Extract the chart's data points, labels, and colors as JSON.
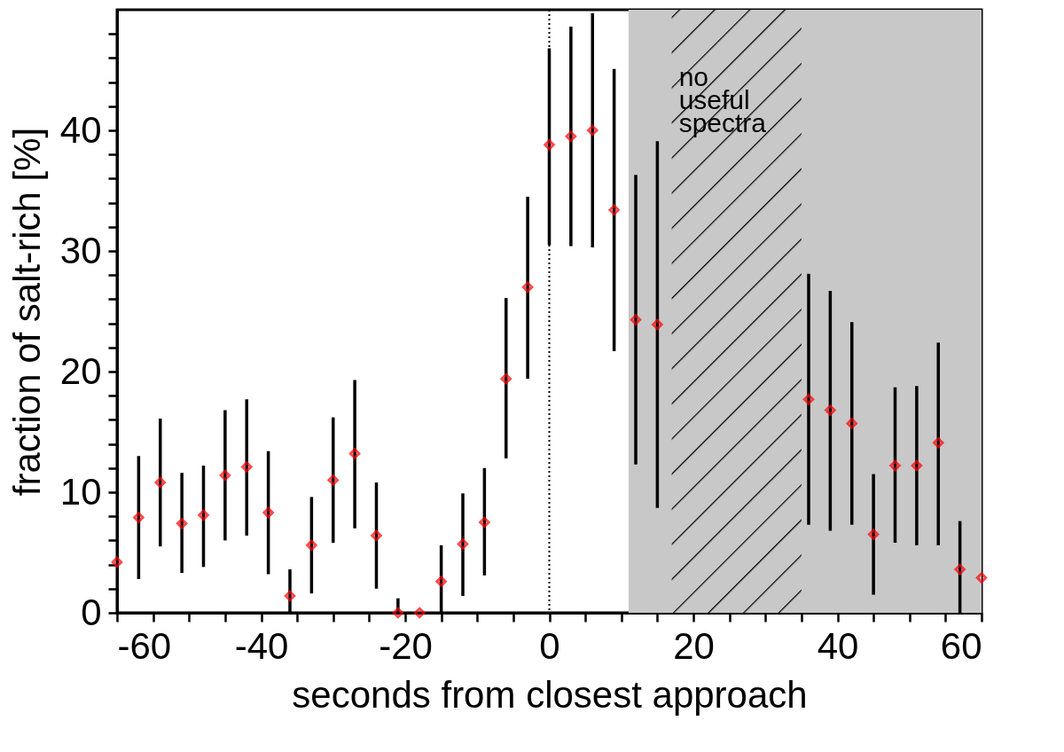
{
  "chart_data": {
    "type": "scatter",
    "xlabel": "seconds from closest approach",
    "ylabel": "fraction of salt-rich [%]",
    "x": [
      -60,
      -57,
      -54,
      -51,
      -48,
      -45,
      -42,
      -39,
      -36,
      -33,
      -30,
      -27,
      -24,
      -21,
      -18,
      -15,
      -12,
      -9,
      -6,
      -3,
      0,
      3,
      6,
      9,
      12,
      15,
      36,
      39,
      42,
      45,
      48,
      51,
      54,
      57,
      60
    ],
    "series": [
      {
        "color": "#ff0000",
        "values": [
          4.2,
          7.9,
          10.8,
          7.4,
          8.1,
          11.4,
          12.1,
          8.3,
          1.4,
          5.6,
          11.0,
          13.2,
          6.4,
          0,
          0,
          2.6,
          5.7,
          7.5,
          19.4,
          27.0,
          38.8,
          39.5,
          40.0,
          33.4,
          24.3,
          23.9,
          17.7,
          16.8,
          15.7,
          6.5,
          12.2,
          12.2,
          14.1,
          3.6,
          2.9
        ],
        "errors": [
          null,
          [
            2.8,
            13.0
          ],
          [
            5.5,
            16.1
          ],
          [
            3.3,
            11.6
          ],
          [
            3.8,
            12.2
          ],
          [
            6.0,
            16.8
          ],
          [
            6.4,
            17.7
          ],
          [
            3.2,
            13.4
          ],
          [
            0,
            3.6
          ],
          [
            1.6,
            9.6
          ],
          [
            5.8,
            16.2
          ],
          [
            7.0,
            19.3
          ],
          [
            2.0,
            10.8
          ],
          [
            0,
            1.2
          ],
          null,
          [
            0,
            5.6
          ],
          [
            1.4,
            9.9
          ],
          [
            3.1,
            12.0
          ],
          [
            12.8,
            26.1
          ],
          [
            19.4,
            34.5
          ],
          [
            30.5,
            46.8
          ],
          [
            30.4,
            48.6
          ],
          [
            30.3,
            49.7
          ],
          [
            21.7,
            45.1
          ],
          [
            12.3,
            36.3
          ],
          [
            8.7,
            39.1
          ],
          [
            7.3,
            28.1
          ],
          [
            6.8,
            26.7
          ],
          [
            7.3,
            24.1
          ],
          [
            1.5,
            11.5
          ],
          [
            5.8,
            18.7
          ],
          [
            5.6,
            18.8
          ],
          [
            5.6,
            22.4
          ],
          [
            0,
            7.6
          ],
          null
        ]
      }
    ],
    "marker": "diamond",
    "xlim": [
      -60,
      60
    ],
    "xticks": [
      -60,
      {
        "value": -55,
        "label": null
      },
      {
        "value": -50,
        "label": null
      },
      {
        "value": -45,
        "label": null
      },
      -40,
      {
        "value": -35,
        "label": null
      },
      {
        "value": -30,
        "label": null
      },
      {
        "value": -25,
        "label": null
      },
      -20,
      {
        "value": -15,
        "label": null
      },
      {
        "value": -10,
        "label": null
      },
      {
        "value": -5,
        "label": null
      },
      0,
      {
        "value": 5,
        "label": null
      },
      {
        "value": 10,
        "label": null
      },
      {
        "value": 15,
        "label": null
      },
      20,
      {
        "value": 25,
        "label": null
      },
      {
        "value": 30,
        "label": null
      },
      {
        "value": 35,
        "label": null
      },
      40,
      {
        "value": 45,
        "label": null
      },
      {
        "value": 50,
        "label": null
      },
      {
        "value": 55,
        "label": null
      },
      60
    ],
    "ylim": [
      0,
      50
    ],
    "yticks": [
      0,
      {
        "value": 2,
        "label": null
      },
      {
        "value": 4,
        "label": null
      },
      {
        "value": 6,
        "label": null
      },
      {
        "value": 8,
        "label": null
      },
      10,
      {
        "value": 12,
        "label": null
      },
      {
        "value": 14,
        "label": null
      },
      {
        "value": 16,
        "label": null
      },
      {
        "value": 18,
        "label": null
      },
      20,
      {
        "value": 22,
        "label": null
      },
      {
        "value": 24,
        "label": null
      },
      {
        "value": 26,
        "label": null
      },
      {
        "value": 28,
        "label": null
      },
      30,
      {
        "value": 32,
        "label": null
      },
      {
        "value": 34,
        "label": null
      },
      {
        "value": 36,
        "label": null
      },
      {
        "value": 38,
        "label": null
      },
      40,
      {
        "value": 42,
        "label": null
      },
      {
        "value": 44,
        "label": null
      },
      {
        "value": 46,
        "label": null
      },
      {
        "value": 48,
        "label": null
      }
    ],
    "grid": false,
    "bands": [
      {
        "axis": "x",
        "from": 11,
        "to": 60,
        "color": "#c8c8c8"
      },
      {
        "axis": "x",
        "from": 17,
        "to": 35,
        "label": "no useful spectra",
        "color": "#c8c8c8"
      }
    ],
    "ref_lines": [
      {
        "axis": "x",
        "value": 0,
        "color": "#000000",
        "line_style": "dotted"
      }
    ]
  }
}
